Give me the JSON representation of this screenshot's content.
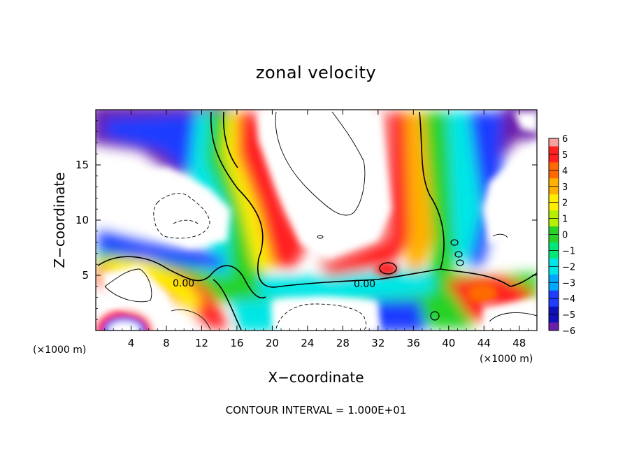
{
  "chart_data": {
    "type": "heatmap",
    "title": "zonal velocity",
    "xlabel": "X−coordinate",
    "ylabel": "Z−coordinate",
    "x_unit_left": "(×1000 m)",
    "x_unit_right": "(×1000 m)",
    "xlim": [
      0,
      50
    ],
    "ylim": [
      0,
      20
    ],
    "x_ticks": [
      4,
      8,
      12,
      16,
      20,
      24,
      28,
      32,
      36,
      40,
      44,
      48
    ],
    "y_ticks": [
      5,
      10,
      15
    ],
    "colorbar": {
      "ticks": [
        6,
        5,
        4,
        3,
        2,
        1,
        0,
        -1,
        -2,
        -3,
        -4,
        -5,
        -6
      ],
      "range": [
        -6,
        6
      ]
    },
    "contour_labels": [
      "0.00",
      "0.00"
    ],
    "footer": "CONTOUR INTERVAL = 1.000E+01",
    "colors": {
      "plus6": "#f6a0a0",
      "plus5": "#ff2020",
      "plus4": "#ff6a00",
      "plus3": "#ffb000",
      "plus2": "#ffee00",
      "plus1": "#b4f000",
      "zero": "#28d228",
      "minus1": "#00e878",
      "minus2": "#00e6e6",
      "minus3": "#00a8ff",
      "minus4": "#1f3cff",
      "minus5": "#1010b8",
      "minus6": "#6a1eaa"
    }
  }
}
